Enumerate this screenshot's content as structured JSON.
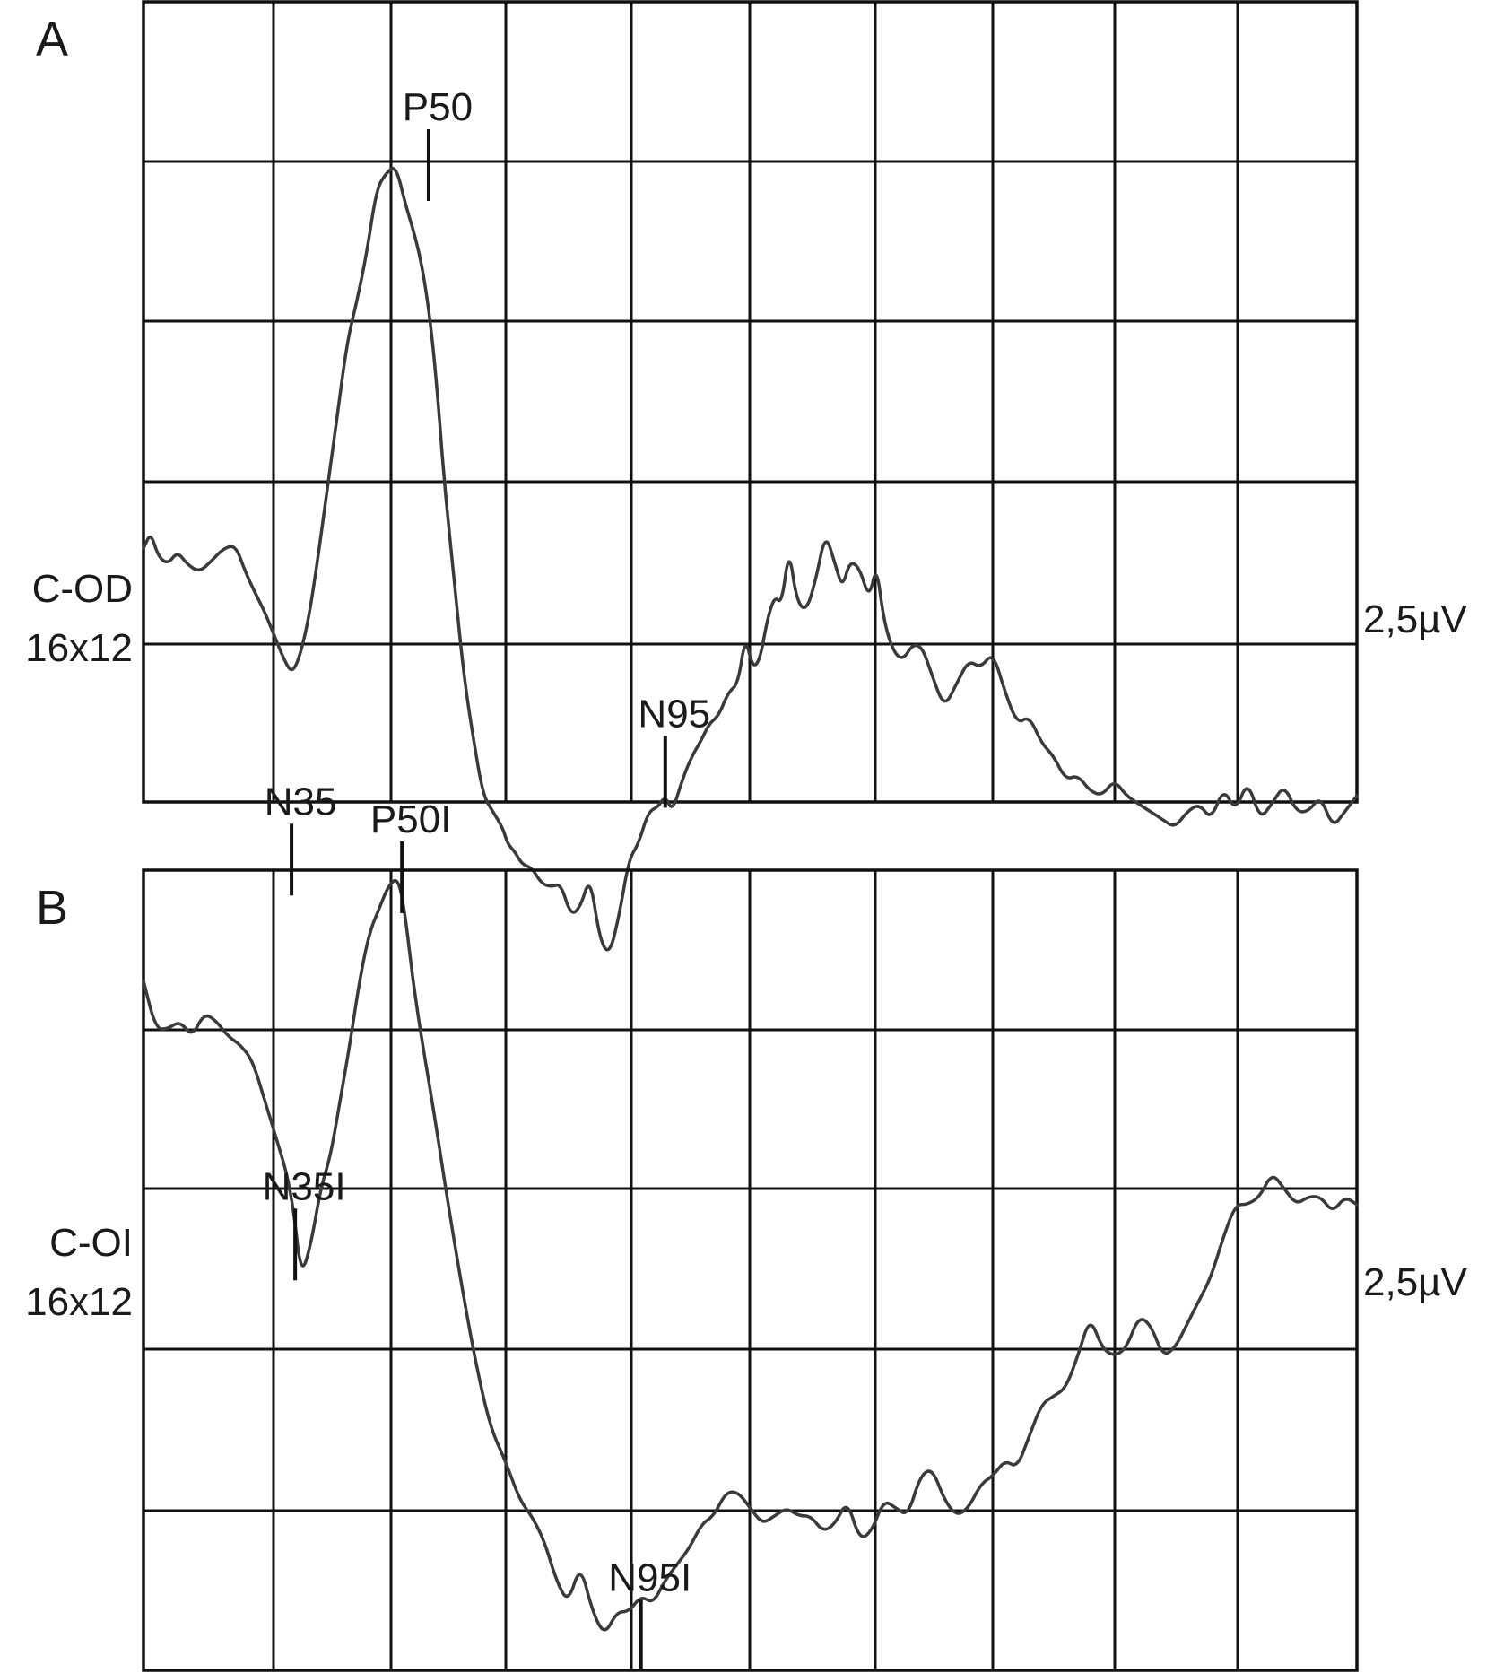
{
  "chart_data": [
    {
      "type": "line",
      "panel_label": "A",
      "channel_label": "C-OD",
      "check_label": "16x12",
      "scale_label": "2,5µV",
      "grid": true,
      "markers": [
        {
          "label": "N35",
          "x": 0.122,
          "y": -1.35
        },
        {
          "label": "P50",
          "x": 0.235,
          "y": 3.0
        },
        {
          "label": "N95",
          "x": 0.43,
          "y": -0.8
        }
      ],
      "x": [
        0.0,
        0.006,
        0.012,
        0.02,
        0.028,
        0.036,
        0.046,
        0.056,
        0.066,
        0.076,
        0.084,
        0.092,
        0.1,
        0.108,
        0.116,
        0.122,
        0.128,
        0.136,
        0.144,
        0.152,
        0.16,
        0.168,
        0.176,
        0.184,
        0.192,
        0.2,
        0.208,
        0.216,
        0.224,
        0.23,
        0.236,
        0.242,
        0.248,
        0.256,
        0.264,
        0.272,
        0.28,
        0.288,
        0.296,
        0.3,
        0.306,
        0.312,
        0.32,
        0.328,
        0.336,
        0.344,
        0.352,
        0.36,
        0.368,
        0.376,
        0.384,
        0.392,
        0.4,
        0.408,
        0.416,
        0.424,
        0.43,
        0.436,
        0.444,
        0.452,
        0.46,
        0.466,
        0.474,
        0.482,
        0.49,
        0.496,
        0.502,
        0.508,
        0.514,
        0.52,
        0.526,
        0.532,
        0.538,
        0.546,
        0.554,
        0.562,
        0.57,
        0.576,
        0.582,
        0.59,
        0.598,
        0.604,
        0.61,
        0.618,
        0.626,
        0.634,
        0.642,
        0.65,
        0.66,
        0.67,
        0.68,
        0.69,
        0.7,
        0.71,
        0.72,
        0.73,
        0.74,
        0.75,
        0.76,
        0.77,
        0.78,
        0.79,
        0.8,
        0.81,
        0.82,
        0.83,
        0.84,
        0.85,
        0.86,
        0.87,
        0.88,
        0.89,
        0.9,
        0.91,
        0.92,
        0.93,
        0.94,
        0.95,
        0.96,
        0.97,
        0.98,
        0.99,
        1.0
      ],
      "values": [
        0.6,
        0.7,
        0.55,
        0.5,
        0.58,
        0.5,
        0.45,
        0.52,
        0.6,
        0.62,
        0.45,
        0.32,
        0.2,
        0.05,
        -0.1,
        -0.18,
        -0.1,
        0.15,
        0.55,
        1.0,
        1.45,
        1.9,
        2.15,
        2.45,
        2.85,
        2.95,
        3.0,
        2.75,
        2.55,
        2.35,
        2.05,
        1.6,
        1.0,
        0.4,
        -0.2,
        -0.6,
        -0.95,
        -1.05,
        -1.15,
        -1.25,
        -1.3,
        -1.38,
        -1.4,
        -1.5,
        -1.52,
        -1.5,
        -1.7,
        -1.65,
        -1.45,
        -1.85,
        -1.95,
        -1.7,
        -1.35,
        -1.25,
        -1.05,
        -1.02,
        -0.95,
        -1.05,
        -0.85,
        -0.7,
        -0.6,
        -0.5,
        -0.45,
        -0.3,
        -0.25,
        0.05,
        -0.15,
        -0.1,
        0.15,
        0.3,
        0.25,
        0.6,
        0.28,
        0.2,
        0.4,
        0.7,
        0.5,
        0.35,
        0.52,
        0.48,
        0.28,
        0.5,
        0.15,
        -0.05,
        -0.1,
        0.0,
        -0.02,
        -0.2,
        -0.4,
        -0.25,
        -0.1,
        -0.15,
        -0.05,
        -0.3,
        -0.5,
        -0.45,
        -0.62,
        -0.7,
        -0.85,
        -0.82,
        -0.92,
        -0.95,
        -0.85,
        -0.95,
        -1.0,
        -1.05,
        -1.1,
        -1.15,
        -1.05,
        -1.0,
        -1.1,
        -0.9,
        -1.05,
        -0.85,
        -1.1,
        -1.0,
        -0.88,
        -1.05,
        -1.05,
        -0.95,
        -1.15,
        -1.05,
        -0.95
      ]
    },
    {
      "type": "line",
      "panel_label": "B",
      "channel_label": "C-OI",
      "check_label": "16x12",
      "scale_label": "2,5µV",
      "grid": true,
      "markers": [
        {
          "label": "N35I",
          "x": 0.125,
          "y": -0.35
        },
        {
          "label": "P50I",
          "x": 0.213,
          "y": 1.95
        },
        {
          "label": "N95I",
          "x": 0.41,
          "y": -2.8
        }
      ],
      "x": [
        0.0,
        0.01,
        0.02,
        0.03,
        0.04,
        0.05,
        0.06,
        0.07,
        0.08,
        0.09,
        0.1,
        0.11,
        0.118,
        0.124,
        0.13,
        0.138,
        0.146,
        0.154,
        0.162,
        0.17,
        0.178,
        0.186,
        0.194,
        0.202,
        0.21,
        0.216,
        0.222,
        0.23,
        0.24,
        0.25,
        0.262,
        0.274,
        0.286,
        0.298,
        0.31,
        0.32,
        0.33,
        0.34,
        0.35,
        0.36,
        0.37,
        0.38,
        0.39,
        0.4,
        0.41,
        0.42,
        0.43,
        0.44,
        0.45,
        0.46,
        0.47,
        0.48,
        0.49,
        0.5,
        0.51,
        0.52,
        0.53,
        0.54,
        0.55,
        0.56,
        0.57,
        0.58,
        0.59,
        0.6,
        0.61,
        0.62,
        0.63,
        0.64,
        0.65,
        0.66,
        0.67,
        0.68,
        0.69,
        0.7,
        0.71,
        0.72,
        0.73,
        0.74,
        0.75,
        0.76,
        0.77,
        0.78,
        0.79,
        0.8,
        0.81,
        0.82,
        0.83,
        0.84,
        0.85,
        0.86,
        0.87,
        0.88,
        0.89,
        0.9,
        0.91,
        0.92,
        0.93,
        0.94,
        0.95,
        0.96,
        0.97,
        0.98,
        0.99,
        1.0
      ],
      "values": [
        1.3,
        1.0,
        1.0,
        1.05,
        0.95,
        1.1,
        1.05,
        0.95,
        0.9,
        0.8,
        0.55,
        0.3,
        0.1,
        -0.15,
        -0.55,
        -0.35,
        0.0,
        0.2,
        0.55,
        0.9,
        1.3,
        1.6,
        1.75,
        1.9,
        1.95,
        1.7,
        1.3,
        0.9,
        0.45,
        -0.05,
        -0.6,
        -1.1,
        -1.5,
        -1.7,
        -1.95,
        -2.05,
        -2.2,
        -2.45,
        -2.6,
        -2.35,
        -2.65,
        -2.8,
        -2.65,
        -2.65,
        -2.55,
        -2.6,
        -2.45,
        -2.35,
        -2.25,
        -2.1,
        -2.05,
        -1.9,
        -1.9,
        -2.0,
        -2.1,
        -2.05,
        -2.0,
        -2.05,
        -2.05,
        -2.15,
        -2.1,
        -1.95,
        -2.2,
        -2.15,
        -1.95,
        -2.0,
        -2.05,
        -1.8,
        -1.75,
        -1.95,
        -2.05,
        -2.0,
        -1.85,
        -1.8,
        -1.7,
        -1.75,
        -1.55,
        -1.35,
        -1.3,
        -1.25,
        -1.05,
        -0.8,
        -1.0,
        -1.05,
        -1.0,
        -0.8,
        -0.85,
        -1.05,
        -1.0,
        -0.85,
        -0.7,
        -0.55,
        -0.3,
        -0.1,
        -0.1,
        -0.05,
        0.1,
        0.0,
        -0.1,
        -0.05,
        -0.05,
        -0.15,
        -0.05,
        -0.1
      ]
    }
  ]
}
